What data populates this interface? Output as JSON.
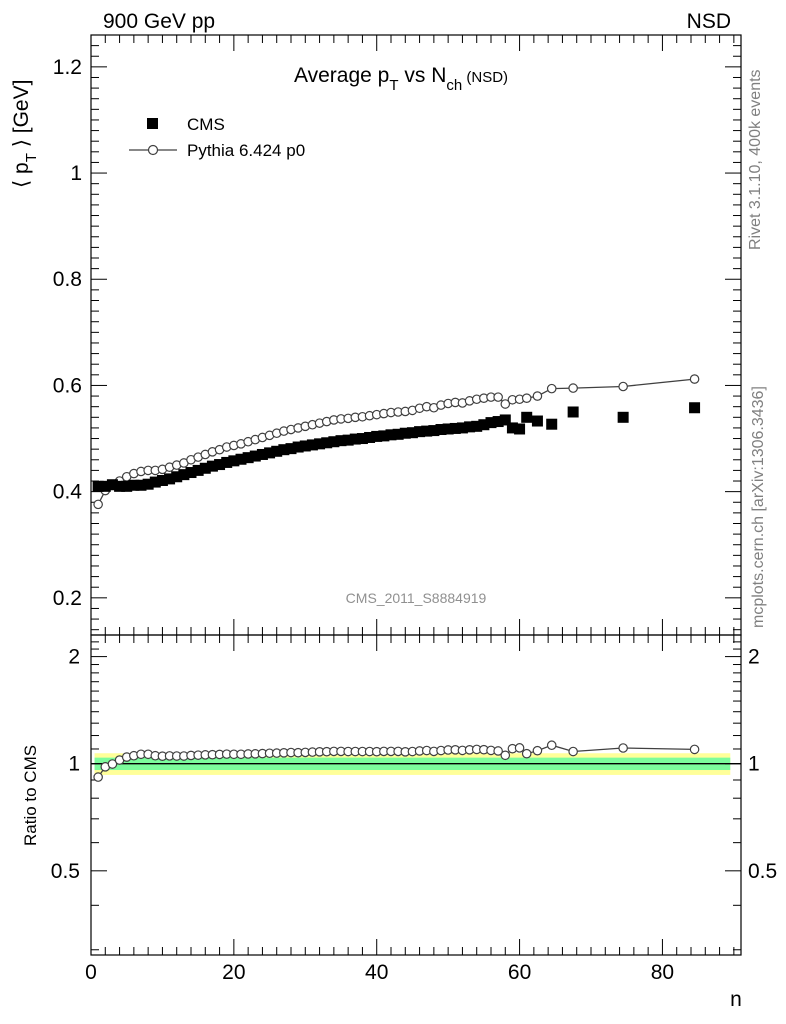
{
  "header": {
    "left": "900 GeV pp",
    "right": "NSD"
  },
  "side_labels": {
    "rivet": "Rivet 3.1.10,  400k events",
    "mcplots": "mcplots.cern.ch [arXiv:1306.3436]"
  },
  "analysis_id": "CMS_2011_S8884919",
  "title_parts": {
    "a": "Average p",
    "a_sub": "T",
    "b": " vs N",
    "b_sub": "ch",
    "c": " (NSD)"
  },
  "colors": {
    "data_marker": "#000000",
    "mc_line": "#404040",
    "band_inner": "#7CFC9C",
    "band_outer": "#FFFF99",
    "side_text": "#808080"
  },
  "chart_data": {
    "type": "scatter",
    "xlabel": "n",
    "ylabel_parts": {
      "left": "⟨ p",
      "sub": "T",
      "right": " ⟩ [GeV]"
    },
    "ratio_ylabel": "Ratio to CMS",
    "xlim": [
      0,
      91
    ],
    "ylim": [
      0.13,
      1.26
    ],
    "ratio_ylim": [
      0.29,
      2.3
    ],
    "xticks": [
      0,
      20,
      40,
      60,
      80
    ],
    "yticks": [
      0.2,
      0.4,
      0.6,
      0.8,
      1,
      1.2
    ],
    "ratio_yticks": [
      0.5,
      1,
      2
    ],
    "legend": {
      "position": "top-left",
      "entries": [
        "CMS",
        "Pythia 6.424 p0"
      ]
    },
    "series": [
      {
        "name": "CMS",
        "marker": "filled-square",
        "x": [
          1,
          2,
          3,
          4,
          5,
          6,
          7,
          8,
          9,
          10,
          11,
          12,
          13,
          14,
          15,
          16,
          17,
          18,
          19,
          20,
          21,
          22,
          23,
          24,
          25,
          26,
          27,
          28,
          29,
          30,
          31,
          32,
          33,
          34,
          35,
          36,
          37,
          38,
          39,
          40,
          41,
          42,
          43,
          44,
          45,
          46,
          47,
          48,
          49,
          50,
          51,
          52,
          53,
          54,
          55,
          56,
          57,
          58,
          59,
          60,
          61,
          62.5,
          64.5,
          67.5,
          74.5,
          84.5
        ],
        "y": [
          0.41,
          0.41,
          0.413,
          0.41,
          0.41,
          0.412,
          0.412,
          0.414,
          0.418,
          0.421,
          0.424,
          0.428,
          0.432,
          0.436,
          0.44,
          0.444,
          0.448,
          0.451,
          0.455,
          0.458,
          0.461,
          0.464,
          0.467,
          0.47,
          0.473,
          0.476,
          0.479,
          0.481,
          0.484,
          0.486,
          0.488,
          0.49,
          0.492,
          0.494,
          0.496,
          0.497,
          0.499,
          0.5,
          0.502,
          0.504,
          0.505,
          0.507,
          0.508,
          0.51,
          0.511,
          0.513,
          0.514,
          0.515,
          0.517,
          0.518,
          0.519,
          0.52,
          0.522,
          0.523,
          0.526,
          0.53,
          0.532,
          0.535,
          0.52,
          0.518,
          0.54,
          0.533,
          0.527,
          0.55,
          0.54,
          0.558
        ]
      },
      {
        "name": "Pythia 6.424 p0",
        "marker": "open-circle-line",
        "x": [
          1,
          2,
          3,
          4,
          5,
          6,
          7,
          8,
          9,
          10,
          11,
          12,
          13,
          14,
          15,
          16,
          17,
          18,
          19,
          20,
          21,
          22,
          23,
          24,
          25,
          26,
          27,
          28,
          29,
          30,
          31,
          32,
          33,
          34,
          35,
          36,
          37,
          38,
          39,
          40,
          41,
          42,
          43,
          44,
          45,
          46,
          47,
          48,
          49,
          50,
          51,
          52,
          53,
          54,
          55,
          56,
          57,
          58,
          59,
          60,
          61,
          62.5,
          64.5,
          67.5,
          74.5,
          84.5
        ],
        "y": [
          0.376,
          0.402,
          0.412,
          0.42,
          0.428,
          0.434,
          0.438,
          0.44,
          0.44,
          0.442,
          0.446,
          0.45,
          0.454,
          0.46,
          0.465,
          0.47,
          0.475,
          0.479,
          0.484,
          0.487,
          0.49,
          0.494,
          0.498,
          0.502,
          0.506,
          0.51,
          0.514,
          0.517,
          0.52,
          0.523,
          0.526,
          0.529,
          0.532,
          0.535,
          0.537,
          0.538,
          0.54,
          0.541,
          0.543,
          0.545,
          0.547,
          0.549,
          0.55,
          0.551,
          0.553,
          0.557,
          0.56,
          0.558,
          0.563,
          0.566,
          0.568,
          0.567,
          0.571,
          0.574,
          0.576,
          0.578,
          0.578,
          0.565,
          0.573,
          0.574,
          0.576,
          0.58,
          0.594,
          0.595,
          0.598,
          0.612
        ]
      }
    ],
    "ratio": {
      "name": "Pythia 6.424 p0 / CMS",
      "x": [
        1,
        2,
        3,
        4,
        5,
        6,
        7,
        8,
        9,
        10,
        11,
        12,
        13,
        14,
        15,
        16,
        17,
        18,
        19,
        20,
        21,
        22,
        23,
        24,
        25,
        26,
        27,
        28,
        29,
        30,
        31,
        32,
        33,
        34,
        35,
        36,
        37,
        38,
        39,
        40,
        41,
        42,
        43,
        44,
        45,
        46,
        47,
        48,
        49,
        50,
        51,
        52,
        53,
        54,
        55,
        56,
        57,
        58,
        59,
        60,
        61,
        62.5,
        64.5,
        67.5,
        74.5,
        84.5
      ],
      "y": [
        0.917,
        0.98,
        0.998,
        1.024,
        1.044,
        1.053,
        1.063,
        1.063,
        1.053,
        1.05,
        1.052,
        1.051,
        1.051,
        1.055,
        1.057,
        1.059,
        1.06,
        1.062,
        1.064,
        1.063,
        1.063,
        1.065,
        1.066,
        1.068,
        1.07,
        1.071,
        1.073,
        1.075,
        1.074,
        1.076,
        1.078,
        1.08,
        1.081,
        1.083,
        1.083,
        1.082,
        1.082,
        1.082,
        1.082,
        1.081,
        1.083,
        1.083,
        1.083,
        1.08,
        1.082,
        1.086,
        1.089,
        1.083,
        1.089,
        1.093,
        1.094,
        1.09,
        1.094,
        1.097,
        1.095,
        1.09,
        1.086,
        1.056,
        1.102,
        1.108,
        1.067,
        1.088,
        1.127,
        1.082,
        1.107,
        1.097
      ],
      "band_inner": [
        0.96,
        1.04
      ],
      "band_outer": [
        0.93,
        1.07
      ]
    }
  }
}
